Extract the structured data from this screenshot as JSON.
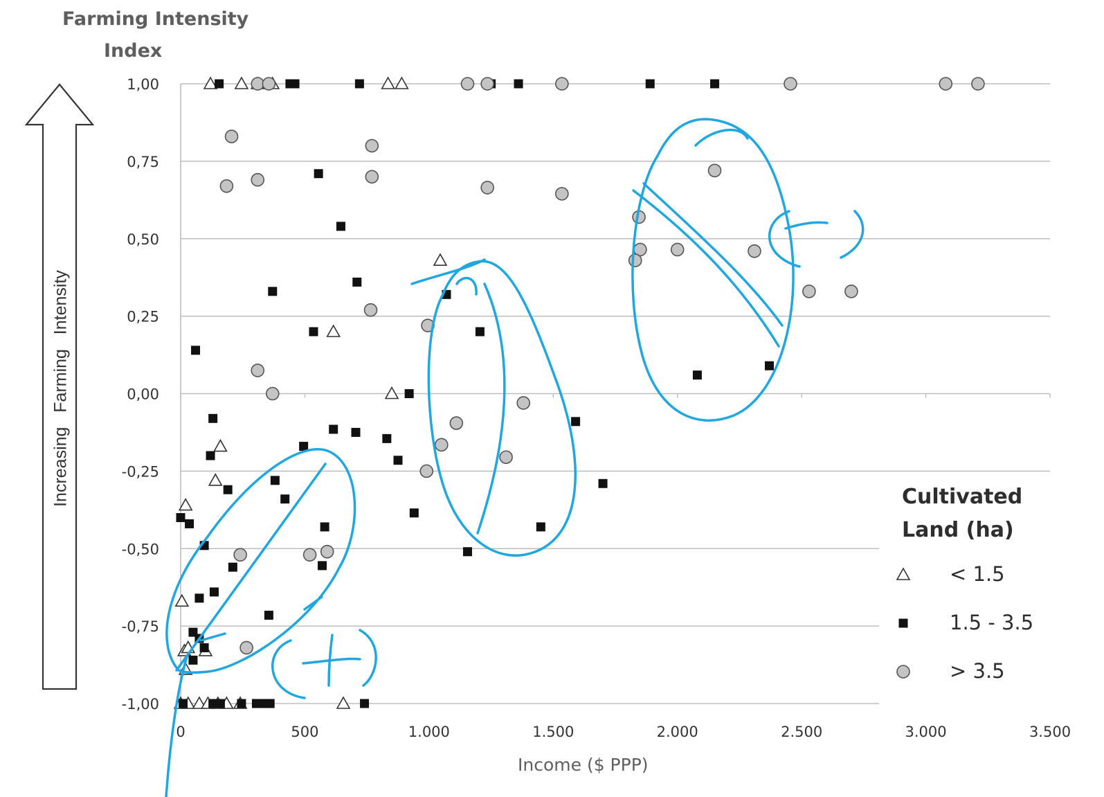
{
  "chart_data": {
    "type": "scatter",
    "ylabel_lines": [
      "Farming Intensity",
      "Index"
    ],
    "xlabel": "Income ($ PPP)",
    "arrow_label": "Increasing   Farming   Intensity",
    "xlim": [
      0,
      3500
    ],
    "ylim": [
      -1.0,
      1.0
    ],
    "grid": "horizontal",
    "legend_position": "bottom-right",
    "legend_title_lines": [
      "Cultivated",
      "Land   (ha)"
    ],
    "x_ticks": [
      {
        "value": 0,
        "label": "0"
      },
      {
        "value": 500,
        "label": "500"
      },
      {
        "value": 1000,
        "label": "1.000"
      },
      {
        "value": 1500,
        "label": "1.500"
      },
      {
        "value": 2000,
        "label": "2.000"
      },
      {
        "value": 2500,
        "label": "2.500"
      },
      {
        "value": 3000,
        "label": "3.000"
      },
      {
        "value": 3500,
        "label": "3.500"
      }
    ],
    "y_ticks": [
      {
        "value": 1.0,
        "label": "1,00"
      },
      {
        "value": 0.75,
        "label": "0,75"
      },
      {
        "value": 0.5,
        "label": "0,50"
      },
      {
        "value": 0.25,
        "label": "0,25"
      },
      {
        "value": 0.0,
        "label": "0,00"
      },
      {
        "value": -0.25,
        "label": "-0,25"
      },
      {
        "value": -0.5,
        "label": "-0,50"
      },
      {
        "value": -0.75,
        "label": "-0,75"
      },
      {
        "value": -1.0,
        "label": "-1,00"
      }
    ],
    "series": [
      {
        "name": "< 1.5",
        "marker": "triangle",
        "color": "#ffffff",
        "stroke": "#333333",
        "points": [
          [
            120,
            1.0
          ],
          [
            245,
            1.0
          ],
          [
            310,
            1.0
          ],
          [
            370,
            1.0
          ],
          [
            835,
            1.0
          ],
          [
            890,
            1.0
          ],
          [
            1045,
            0.43
          ],
          [
            615,
            0.2
          ],
          [
            850,
            0.0
          ],
          [
            160,
            -0.17
          ],
          [
            140,
            -0.28
          ],
          [
            20,
            -0.36
          ],
          [
            5,
            -0.67
          ],
          [
            15,
            -0.83
          ],
          [
            30,
            -0.82
          ],
          [
            100,
            -0.83
          ],
          [
            20,
            -0.89
          ],
          [
            0,
            -1.0
          ],
          [
            30,
            -1.0
          ],
          [
            75,
            -1.0
          ],
          [
            110,
            -1.0
          ],
          [
            150,
            -1.0
          ],
          [
            185,
            -1.0
          ],
          [
            240,
            -1.0
          ],
          [
            655,
            -1.0
          ]
        ]
      },
      {
        "name": "1.5 - 3.5",
        "marker": "square",
        "color": "#111111",
        "stroke": "#111111",
        "points": [
          [
            155,
            1.0
          ],
          [
            440,
            1.0
          ],
          [
            460,
            1.0
          ],
          [
            720,
            1.0
          ],
          [
            1250,
            1.0
          ],
          [
            1360,
            1.0
          ],
          [
            1890,
            1.0
          ],
          [
            2150,
            1.0
          ],
          [
            555,
            0.71
          ],
          [
            645,
            0.54
          ],
          [
            710,
            0.36
          ],
          [
            370,
            0.33
          ],
          [
            1070,
            0.32
          ],
          [
            535,
            0.2
          ],
          [
            1205,
            0.2
          ],
          [
            60,
            0.14
          ],
          [
            2370,
            0.09
          ],
          [
            2080,
            0.06
          ],
          [
            920,
            0.0
          ],
          [
            130,
            -0.08
          ],
          [
            1590,
            -0.09
          ],
          [
            615,
            -0.115
          ],
          [
            705,
            -0.125
          ],
          [
            830,
            -0.145
          ],
          [
            495,
            -0.17
          ],
          [
            120,
            -0.2
          ],
          [
            875,
            -0.215
          ],
          [
            1700,
            -0.29
          ],
          [
            380,
            -0.28
          ],
          [
            190,
            -0.31
          ],
          [
            420,
            -0.34
          ],
          [
            940,
            -0.385
          ],
          [
            0,
            -0.4
          ],
          [
            35,
            -0.42
          ],
          [
            580,
            -0.43
          ],
          [
            1450,
            -0.43
          ],
          [
            95,
            -0.49
          ],
          [
            1155,
            -0.51
          ],
          [
            210,
            -0.56
          ],
          [
            570,
            -0.555
          ],
          [
            135,
            -0.64
          ],
          [
            75,
            -0.66
          ],
          [
            355,
            -0.715
          ],
          [
            50,
            -0.77
          ],
          [
            75,
            -0.79
          ],
          [
            95,
            -0.82
          ],
          [
            50,
            -0.86
          ],
          [
            10,
            -1.0
          ],
          [
            130,
            -1.0
          ],
          [
            160,
            -1.0
          ],
          [
            245,
            -1.0
          ],
          [
            305,
            -1.0
          ],
          [
            335,
            -1.0
          ],
          [
            360,
            -1.0
          ],
          [
            740,
            -1.0
          ]
        ]
      },
      {
        "name": "> 3.5",
        "marker": "circle",
        "color": "#c4c4c4",
        "stroke": "#555555",
        "points": [
          [
            310,
            1.0
          ],
          [
            355,
            1.0
          ],
          [
            1155,
            1.0
          ],
          [
            1235,
            1.0
          ],
          [
            1535,
            1.0
          ],
          [
            2455,
            1.0
          ],
          [
            3080,
            1.0
          ],
          [
            3210,
            1.0
          ],
          [
            205,
            0.83
          ],
          [
            770,
            0.8
          ],
          [
            2150,
            0.72
          ],
          [
            185,
            0.67
          ],
          [
            310,
            0.69
          ],
          [
            770,
            0.7
          ],
          [
            1235,
            0.665
          ],
          [
            1535,
            0.645
          ],
          [
            1845,
            0.57
          ],
          [
            1850,
            0.465
          ],
          [
            2000,
            0.465
          ],
          [
            2310,
            0.46
          ],
          [
            1830,
            0.43
          ],
          [
            2530,
            0.33
          ],
          [
            2700,
            0.33
          ],
          [
            765,
            0.27
          ],
          [
            995,
            0.22
          ],
          [
            310,
            0.075
          ],
          [
            370,
            0.0
          ],
          [
            1380,
            -0.03
          ],
          [
            1110,
            -0.095
          ],
          [
            1050,
            -0.165
          ],
          [
            1310,
            -0.205
          ],
          [
            990,
            -0.25
          ],
          [
            240,
            -0.52
          ],
          [
            520,
            -0.52
          ],
          [
            590,
            -0.51
          ],
          [
            265,
            -0.82
          ]
        ]
      }
    ]
  },
  "annotations": {
    "color": "#1ea7e1",
    "text_marks": [
      "(+)",
      "(-)"
    ]
  }
}
